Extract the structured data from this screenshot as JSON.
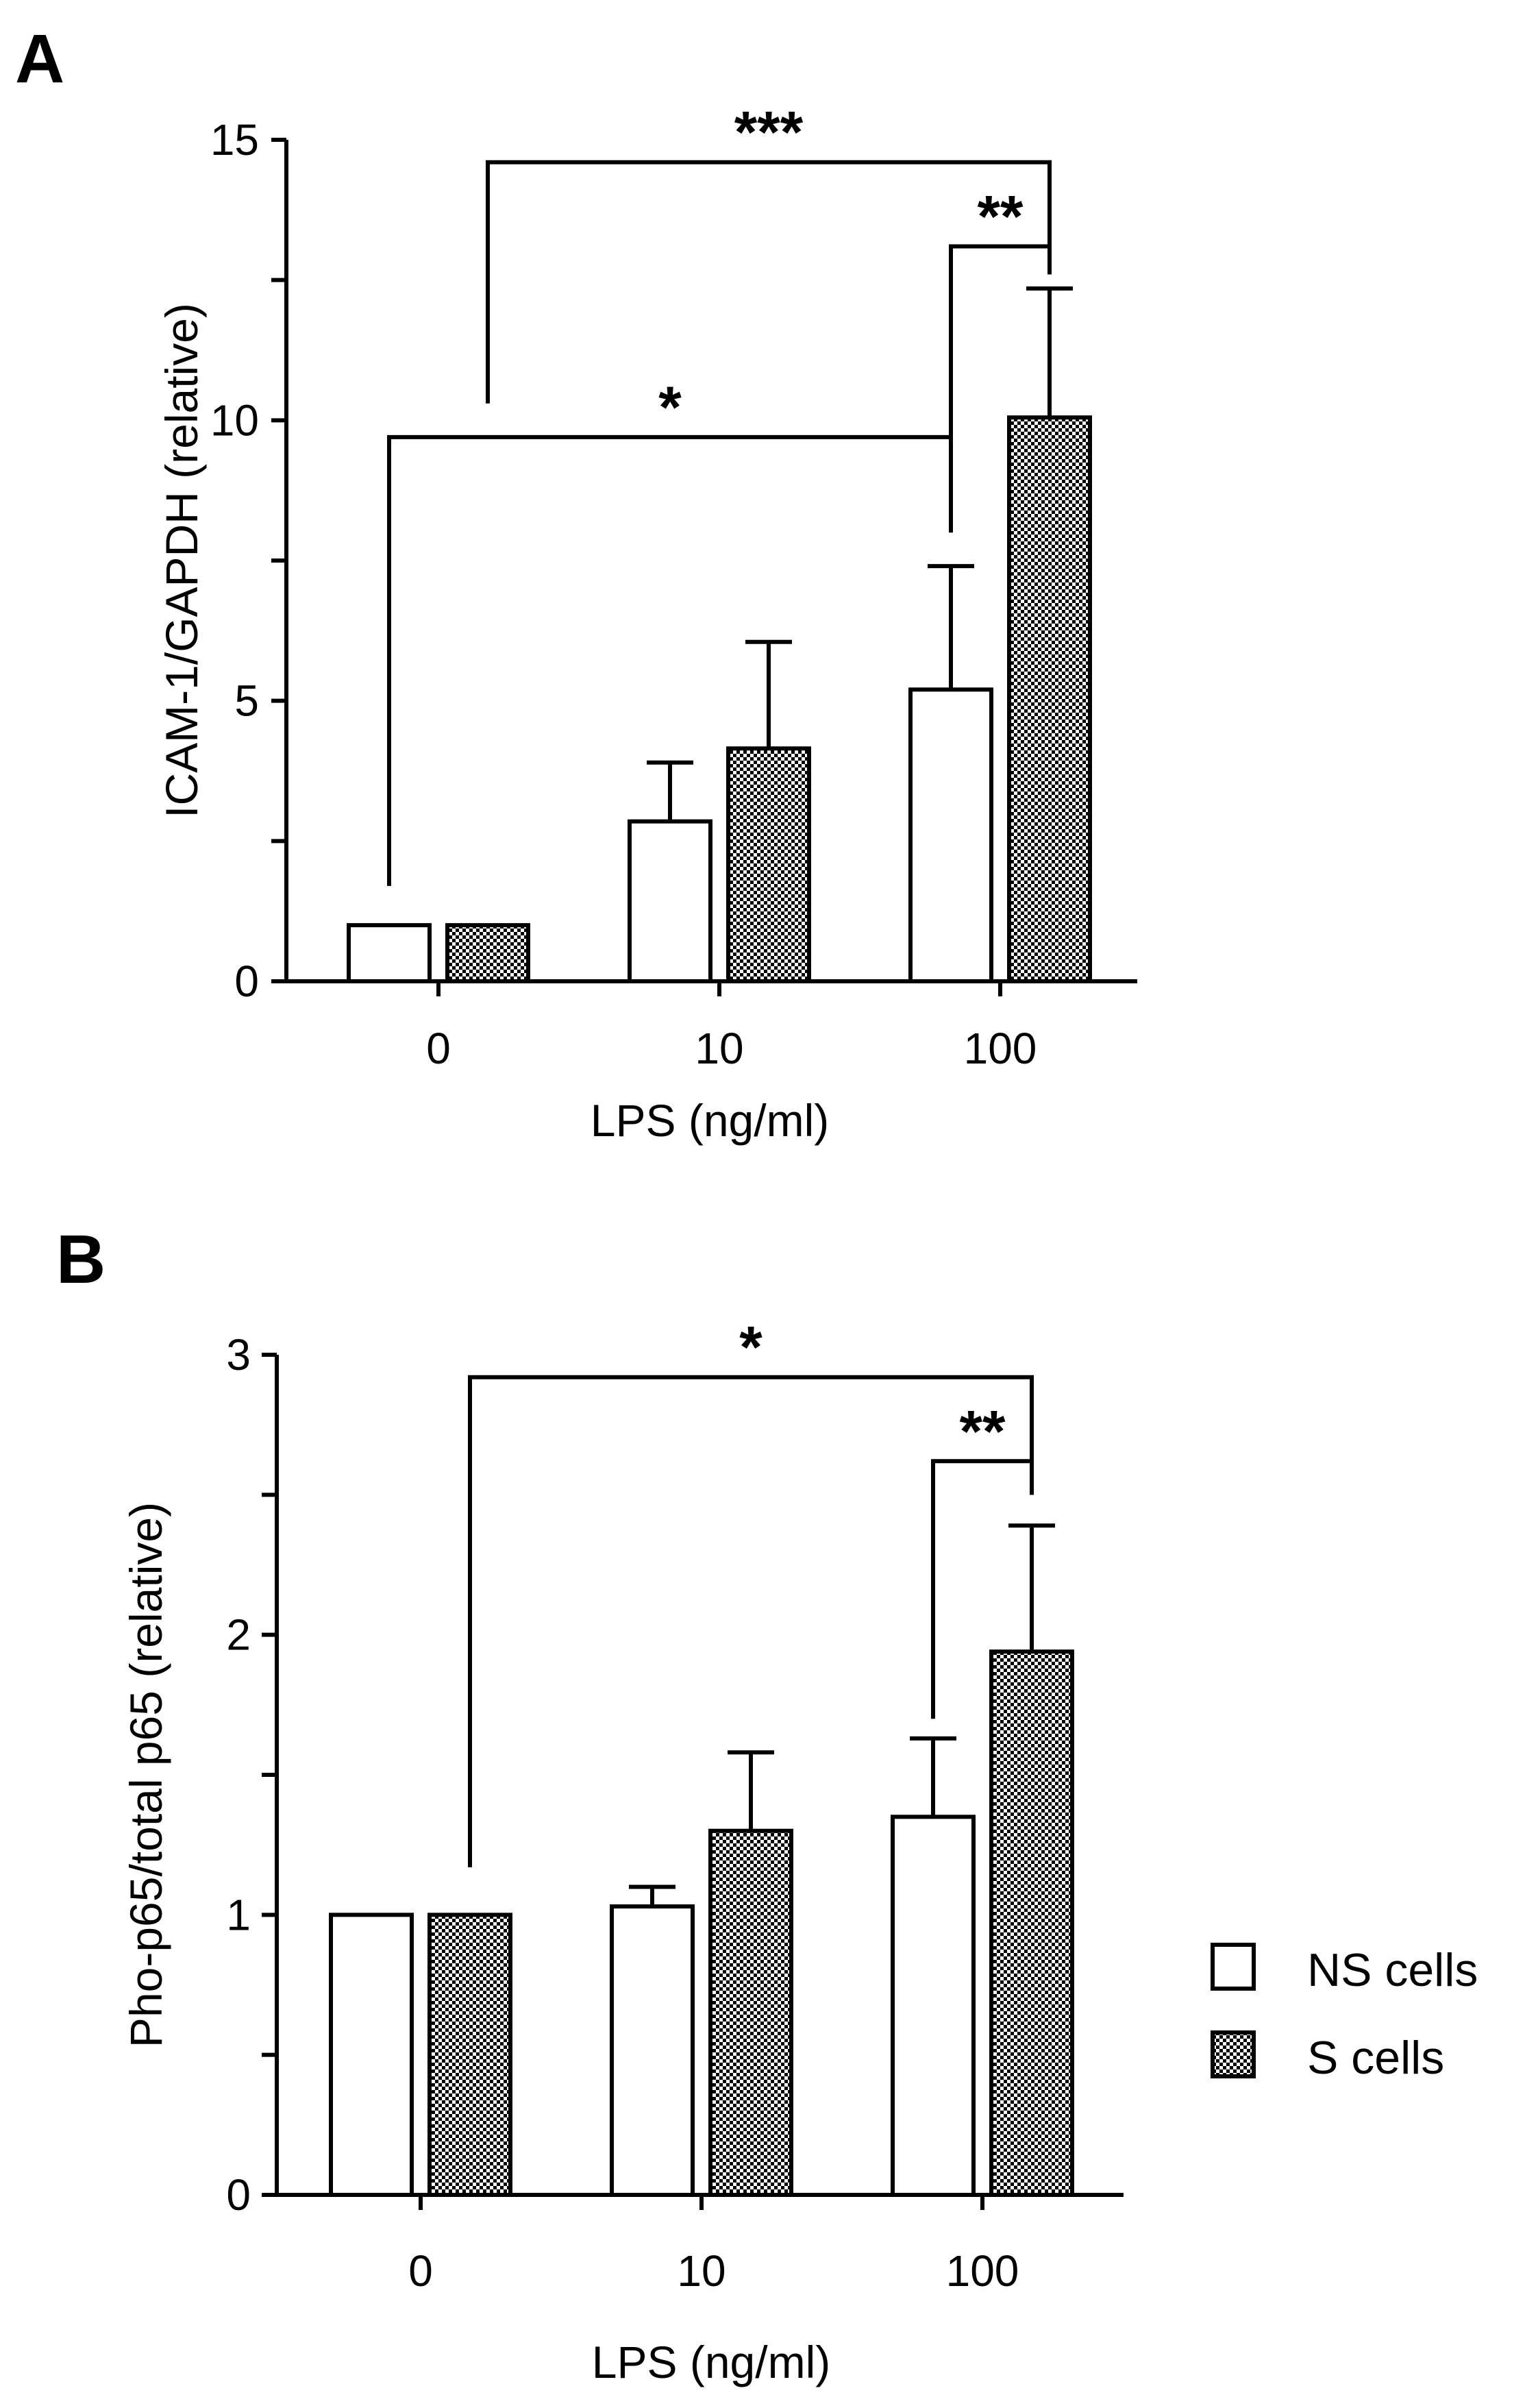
{
  "chart_data": [
    {
      "panel": "A",
      "type": "bar",
      "categories": [
        "0",
        "10",
        "100"
      ],
      "series": [
        {
          "name": "NS cells",
          "values": [
            1.0,
            2.85,
            5.2
          ],
          "errors": [
            0.0,
            1.05,
            2.2
          ]
        },
        {
          "name": "S cells",
          "values": [
            1.0,
            4.15,
            10.05
          ],
          "errors": [
            0.0,
            1.9,
            2.3
          ]
        }
      ],
      "xlabel": "LPS (ng/ml)",
      "ylabel": "ICAM-1/GAPDH (relative)",
      "ylim": [
        0,
        15
      ],
      "yticks": [
        "0",
        "5",
        "10",
        "15"
      ],
      "significance": [
        {
          "label": "***",
          "from": {
            "category": 0,
            "series": 1
          },
          "to": {
            "category": 2,
            "series": 1
          },
          "level": 14.6,
          "left_drop": 10.3,
          "right_drop": 12.8
        },
        {
          "label": "**",
          "from": {
            "category": 2,
            "series": 0
          },
          "to": {
            "category": 2,
            "series": 1
          },
          "level": 13.1,
          "left_drop": 8.0,
          "right_drop": 12.6
        },
        {
          "label": "*",
          "from": {
            "category": 0,
            "series": 0
          },
          "to": {
            "category": 2,
            "series": 0
          },
          "level": 9.7,
          "left_drop": 1.7,
          "right_drop": 8.0
        }
      ]
    },
    {
      "panel": "B",
      "type": "bar",
      "categories": [
        "0",
        "10",
        "100"
      ],
      "series": [
        {
          "name": "NS cells",
          "values": [
            1.0,
            1.03,
            1.35
          ],
          "errors": [
            0.0,
            0.07,
            0.28
          ]
        },
        {
          "name": "S cells",
          "values": [
            1.0,
            1.3,
            1.94
          ],
          "errors": [
            0.0,
            0.28,
            0.45
          ]
        }
      ],
      "xlabel": "LPS (ng/ml)",
      "ylabel": "Pho-p65/total p65 (relative)",
      "ylim": [
        0,
        3
      ],
      "yticks": [
        "0",
        "1",
        "2",
        "3"
      ],
      "significance": [
        {
          "label": "*",
          "from": {
            "category": 0,
            "series": 1
          },
          "to": {
            "category": 2,
            "series": 1
          },
          "level": 2.92,
          "left_drop": 1.17,
          "right_drop": 2.5
        },
        {
          "label": "**",
          "from": {
            "category": 2,
            "series": 0
          },
          "to": {
            "category": 2,
            "series": 1
          },
          "level": 2.62,
          "left_drop": 1.7,
          "right_drop": 2.5
        }
      ]
    }
  ],
  "legend": {
    "position": "right",
    "items": [
      {
        "label": "NS cells",
        "fill": "open"
      },
      {
        "label": "S cells",
        "fill": "checkered"
      }
    ]
  },
  "colors": {
    "axis": "#000000",
    "bar_open": "#ffffff",
    "pattern_dark": "#000000",
    "pattern_light": "#ffffff"
  }
}
